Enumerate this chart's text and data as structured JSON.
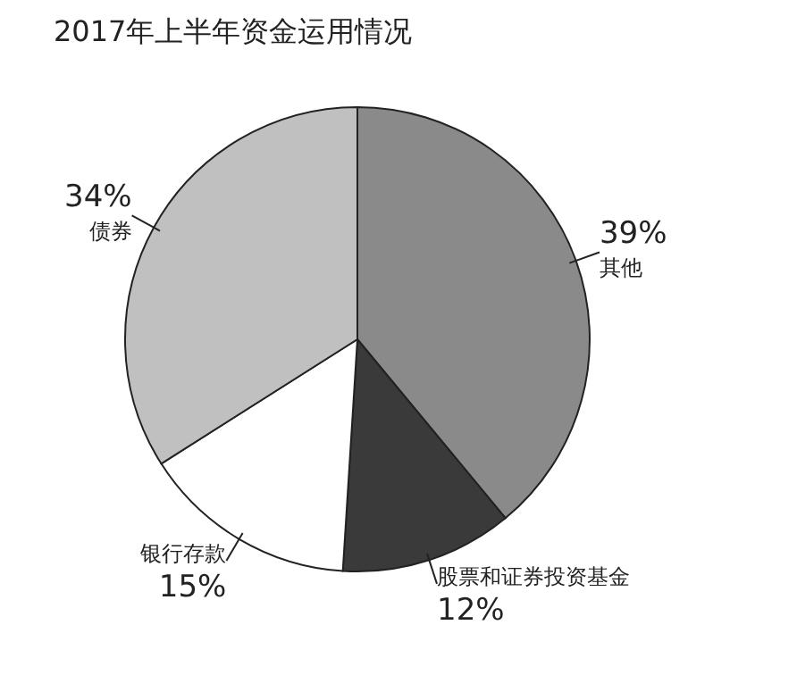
{
  "chart_data": {
    "type": "pie",
    "title": "2017年上半年资金运用情况",
    "categories": [
      "其他",
      "股票和证券投资基金",
      "银行存款",
      "债券"
    ],
    "values": [
      39,
      12,
      15,
      34
    ],
    "value_labels": [
      "39%",
      "12%",
      "15%",
      "34%"
    ],
    "colors": [
      "#8a8a8a",
      "#3a3a3a",
      "#ffffff",
      "#c0c0c0"
    ]
  }
}
